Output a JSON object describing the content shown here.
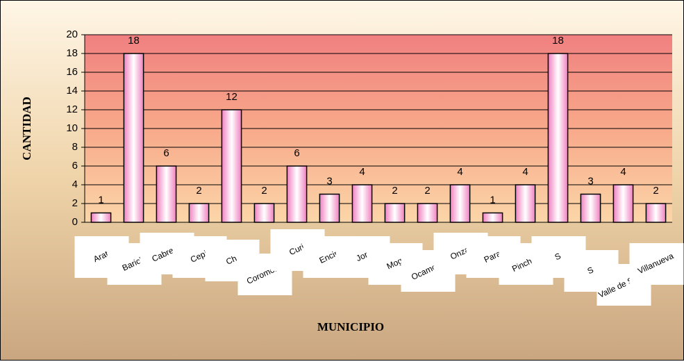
{
  "chart_data": {
    "type": "bar",
    "y_label": "CANTIDAD",
    "x_label": "MUNICIPIO",
    "categories": [
      "Arat",
      "Barich",
      "Cabrera",
      "Cepi",
      "Ch",
      "Coromoro",
      "Curi",
      "Encin",
      "Jor",
      "Mog",
      "Ocamont",
      "Onza",
      "Para",
      "Pinchot",
      "S",
      "S",
      "Valle de San J",
      "Villanueva"
    ],
    "values": [
      1,
      18,
      6,
      2,
      12,
      2,
      6,
      3,
      4,
      2,
      2,
      4,
      1,
      4,
      18,
      3,
      4,
      2
    ],
    "ylim": [
      0,
      20
    ],
    "yticks": [
      0,
      2,
      4,
      6,
      8,
      10,
      12,
      14,
      16,
      18,
      20
    ],
    "grid": true
  }
}
